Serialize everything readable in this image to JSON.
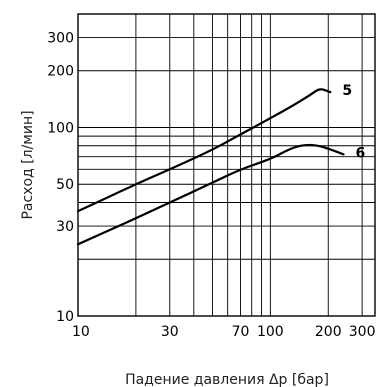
{
  "chart_data": {
    "type": "line",
    "xscale": "log",
    "yscale": "log",
    "xlabel": "Падение давления Δp [бар]",
    "ylabel": "Расход [л/мин]",
    "xlim": [
      10,
      350
    ],
    "ylim": [
      10,
      400
    ],
    "x_ticks": [
      {
        "value": 10,
        "label": "10"
      },
      {
        "value": 30,
        "label": "30"
      },
      {
        "value": 70,
        "label": "70"
      },
      {
        "value": 100,
        "label": "100"
      },
      {
        "value": 200,
        "label": "200"
      },
      {
        "value": 300,
        "label": "300"
      }
    ],
    "y_ticks": [
      {
        "value": 10,
        "label": "10"
      },
      {
        "value": 30,
        "label": "30"
      },
      {
        "value": 50,
        "label": "50"
      },
      {
        "value": 100,
        "label": "100"
      },
      {
        "value": 200,
        "label": "200"
      },
      {
        "value": 300,
        "label": "300"
      }
    ],
    "x_grid": [
      20,
      30,
      40,
      50,
      60,
      70,
      80,
      90,
      100,
      200,
      300
    ],
    "y_grid": [
      20,
      30,
      40,
      50,
      60,
      70,
      80,
      90,
      100,
      200,
      300
    ],
    "grid": true,
    "series": [
      {
        "name": "5",
        "color": "#000000",
        "points": [
          [
            10,
            36
          ],
          [
            20,
            50
          ],
          [
            30,
            60
          ],
          [
            50,
            76
          ],
          [
            70,
            92
          ],
          [
            100,
            112
          ],
          [
            130,
            130
          ],
          [
            160,
            148
          ],
          [
            175,
            158
          ],
          [
            185,
            160
          ],
          [
            195,
            157
          ],
          [
            205,
            154
          ]
        ]
      },
      {
        "name": "6",
        "color": "#000000",
        "points": [
          [
            10,
            24
          ],
          [
            20,
            33
          ],
          [
            30,
            40
          ],
          [
            50,
            51
          ],
          [
            70,
            60
          ],
          [
            100,
            68
          ],
          [
            120,
            75
          ],
          [
            140,
            80
          ],
          [
            160,
            81
          ],
          [
            180,
            80
          ],
          [
            210,
            76
          ],
          [
            240,
            72
          ]
        ]
      }
    ]
  }
}
